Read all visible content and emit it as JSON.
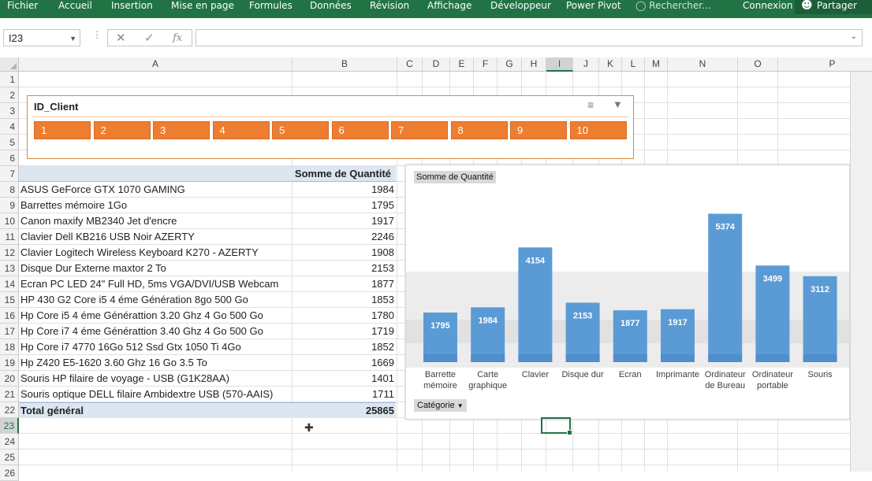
{
  "ribbon": {
    "tabs": [
      "Fichier",
      "Accueil",
      "Insertion",
      "Mise en page",
      "Formules",
      "Données",
      "Révision",
      "Affichage",
      "Développeur",
      "Power Pivot"
    ],
    "search_placeholder": "Rechercher...",
    "connexion": "Connexion",
    "share": "Partager",
    "theme_color": "#217346"
  },
  "formula_bar": {
    "name_box": "I23",
    "fx_label": "fx",
    "cancel_icon": "cross-icon",
    "enter_icon": "check-icon",
    "formula": ""
  },
  "columns": [
    "A",
    "B",
    "C",
    "D",
    "E",
    "F",
    "G",
    "H",
    "I",
    "J",
    "K",
    "L",
    "M",
    "N",
    "O",
    "P"
  ],
  "selected_column": "I",
  "rows": [
    "1",
    "2",
    "3",
    "4",
    "5",
    "6",
    "7",
    "8",
    "9",
    "10",
    "11",
    "12",
    "13",
    "14",
    "15",
    "16",
    "17",
    "18",
    "19",
    "20",
    "21",
    "22",
    "23",
    "24",
    "25",
    "26"
  ],
  "selected_row": "23",
  "slicer": {
    "title": "ID_Client",
    "items": [
      "1",
      "2",
      "3",
      "4",
      "5",
      "6",
      "7",
      "8",
      "9",
      "10"
    ],
    "accent_color": "#ed7d31"
  },
  "pivot": {
    "header": "Somme de Quantité",
    "rows": [
      {
        "label": "ASUS GeForce GTX 1070 GAMING",
        "value": "1984"
      },
      {
        "label": "Barrettes mémoire 1Go",
        "value": "1795"
      },
      {
        "label": "Canon maxify MB2340 Jet d'encre",
        "value": "1917"
      },
      {
        "label": "Clavier Dell KB216 USB Noir AZERTY",
        "value": "2246"
      },
      {
        "label": "Clavier Logitech Wireless Keyboard K270 - AZERTY",
        "value": "1908"
      },
      {
        "label": "Disque Dur Externe maxtor 2 To",
        "value": "2153"
      },
      {
        "label": "Ecran PC LED 24\" Full HD, 5ms VGA/DVI/USB Webcam",
        "value": "1877"
      },
      {
        "label": "HP 430 G2 Core i5 4 éme Génération 8go 500 Go",
        "value": "1853"
      },
      {
        "label": "Hp Core i5 4 éme Générattion 3.20 Ghz 4 Go 500 Go",
        "value": "1780"
      },
      {
        "label": "Hp Core i7 4 éme Générattion 3.40 Ghz 4 Go 500 Go",
        "value": "1719"
      },
      {
        "label": "Hp Core i7 4770 16Go 512 Ssd Gtx 1050 Ti 4Go",
        "value": "1852"
      },
      {
        "label": "Hp Z420 E5-1620 3.60 Ghz 16 Go 3.5 To",
        "value": "1669"
      },
      {
        "label": "Souris HP filaire de voyage - USB (G1K28AA)",
        "value": "1401"
      },
      {
        "label": "Souris optique DELL filaire Ambidextre USB (570-AAIS)",
        "value": "1711"
      }
    ],
    "total_label": "Total général",
    "total_value": "25865",
    "header_color": "#dce6f1"
  },
  "chart_data": {
    "type": "bar",
    "field_button": "Somme  de Quantité",
    "category_button": "Catégorie",
    "categories": [
      "Barrette mémoire",
      "Carte graphique",
      "Clavier",
      "Disque dur",
      "Ecran",
      "Imprimante",
      "Ordinateur de Bureau",
      "Ordinateur portable",
      "Souris"
    ],
    "category_lines": [
      [
        "Barrette",
        "mémoire"
      ],
      [
        "Carte",
        "graphique"
      ],
      [
        "Clavier"
      ],
      [
        "Disque dur"
      ],
      [
        "Ecran"
      ],
      [
        "Imprimante"
      ],
      [
        "Ordinateur",
        "de Bureau"
      ],
      [
        "Ordinateur",
        "portable"
      ],
      [
        "Souris"
      ]
    ],
    "values": [
      1795,
      1984,
      4154,
      2153,
      1877,
      1917,
      5374,
      3499,
      3112
    ],
    "ylim": [
      0,
      6000
    ],
    "bar_color": "#5b9bd5",
    "grid": false
  }
}
